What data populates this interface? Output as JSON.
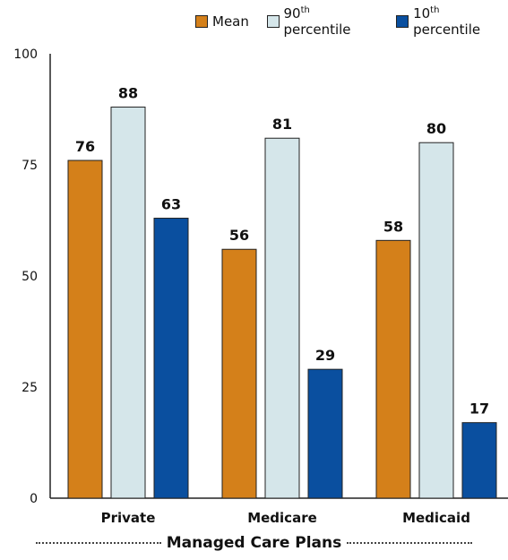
{
  "legend": [
    {
      "label": "Mean",
      "sup": "",
      "after": "",
      "color": "#d4801a"
    },
    {
      "label": "90",
      "sup": "th",
      "after": " percentile",
      "color": "#d5e6ea"
    },
    {
      "label": "10",
      "sup": "th",
      "after": " percentile",
      "color": "#0a4f9f"
    }
  ],
  "group_title": "Managed Care Plans",
  "chart_data": {
    "type": "bar",
    "categories": [
      "Private",
      "Medicare",
      "Medicaid"
    ],
    "series": [
      {
        "name": "Mean",
        "values": [
          76,
          56,
          58
        ],
        "color": "#d4801a"
      },
      {
        "name": "90th percentile",
        "values": [
          88,
          81,
          80
        ],
        "color": "#d5e6ea"
      },
      {
        "name": "10th percentile",
        "values": [
          63,
          29,
          17
        ],
        "color": "#0a4f9f"
      }
    ],
    "ylim": [
      0,
      100
    ],
    "yticks": [
      0,
      25,
      50,
      75,
      100
    ],
    "grid": false,
    "legend_position": "top-right",
    "xlabel": "Managed Care Plans"
  }
}
